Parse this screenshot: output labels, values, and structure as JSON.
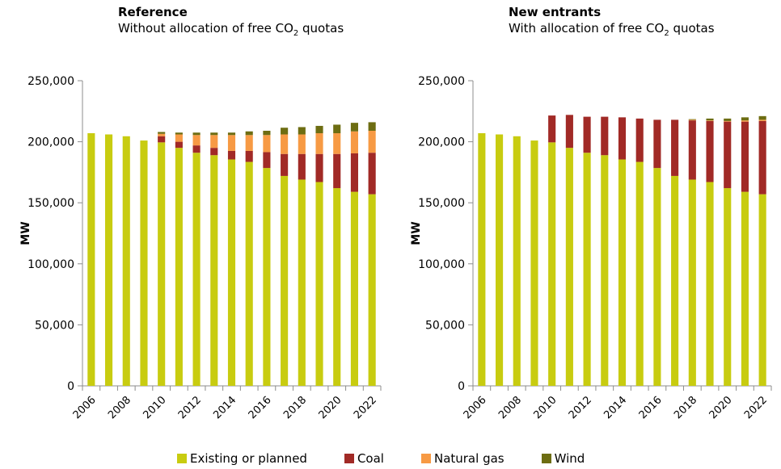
{
  "colors": {
    "Existing or planned": "#c8cc10",
    "Coal": "#a12a26",
    "Natural gas": "#f79a44",
    "Wind": "#6d6d12"
  },
  "legend": [
    "Existing or planned",
    "Coal",
    "Natural gas",
    "Wind"
  ],
  "chart_data": [
    {
      "type": "bar",
      "stacked": true,
      "title": "Reference",
      "subtitle": [
        "Without allocation of free CO",
        "2",
        " quotas"
      ],
      "ylabel": "MW",
      "ylim": [
        0,
        250000
      ],
      "yticks": [
        0,
        50000,
        100000,
        150000,
        200000,
        250000
      ],
      "ytick_labels": [
        "0",
        "50,000",
        "100,000",
        "150,000",
        "200,000",
        "250,000"
      ],
      "x_tick_labels": [
        "2006",
        "2008",
        "2010",
        "2012",
        "2014",
        "2016",
        "2018",
        "2020",
        "2022"
      ],
      "categories": [
        "2006",
        "2007",
        "2008",
        "2009",
        "2010",
        "2011",
        "2012",
        "2013",
        "2014",
        "2015",
        "2016",
        "2017",
        "2018",
        "2019",
        "2020",
        "2021",
        "2022"
      ],
      "series": [
        {
          "name": "Existing or planned",
          "values": [
            207000,
            206000,
            204500,
            201000,
            199500,
            195000,
            191000,
            189000,
            185500,
            183500,
            178500,
            172000,
            169000,
            167000,
            162000,
            159000,
            157000
          ]
        },
        {
          "name": "Coal",
          "values": [
            0,
            0,
            0,
            0,
            5000,
            5000,
            6000,
            6000,
            7000,
            9000,
            13000,
            18000,
            21000,
            23000,
            28000,
            31500,
            34000
          ]
        },
        {
          "name": "Natural gas",
          "values": [
            0,
            0,
            0,
            0,
            2000,
            6000,
            8500,
            10500,
            13000,
            13000,
            14000,
            16000,
            16000,
            17000,
            17000,
            18000,
            18000
          ]
        },
        {
          "name": "Wind",
          "values": [
            0,
            0,
            0,
            0,
            1500,
            1500,
            2000,
            2000,
            2000,
            3000,
            3500,
            5500,
            6000,
            6000,
            7000,
            7000,
            7000
          ]
        }
      ]
    },
    {
      "type": "bar",
      "stacked": true,
      "title": "New entrants",
      "subtitle": [
        "With allocation of free CO",
        "2",
        " quotas"
      ],
      "ylabel": "MW",
      "ylim": [
        0,
        250000
      ],
      "yticks": [
        0,
        50000,
        100000,
        150000,
        200000,
        250000
      ],
      "ytick_labels": [
        "0",
        "50,000",
        "100,000",
        "150,000",
        "200,000",
        "250,000"
      ],
      "x_tick_labels": [
        "2006",
        "2008",
        "2010",
        "2012",
        "2014",
        "2016",
        "2018",
        "2020",
        "2022"
      ],
      "categories": [
        "2006",
        "2007",
        "2008",
        "2009",
        "2010",
        "2011",
        "2012",
        "2013",
        "2014",
        "2015",
        "2016",
        "2017",
        "2018",
        "2019",
        "2020",
        "2021",
        "2022"
      ],
      "series": [
        {
          "name": "Existing or planned",
          "values": [
            207000,
            206000,
            204500,
            201000,
            199500,
            195000,
            191000,
            189000,
            185500,
            183500,
            178500,
            172000,
            169000,
            167000,
            162000,
            159000,
            157000
          ]
        },
        {
          "name": "Coal",
          "values": [
            0,
            0,
            0,
            0,
            22000,
            27000,
            29500,
            31500,
            34500,
            35500,
            39500,
            46000,
            48500,
            50000,
            54500,
            57500,
            60000
          ]
        },
        {
          "name": "Natural gas",
          "values": [
            0,
            0,
            0,
            0,
            0,
            0,
            0,
            0,
            0,
            0,
            0,
            0,
            500,
            500,
            500,
            1000,
            1000
          ]
        },
        {
          "name": "Wind",
          "values": [
            0,
            0,
            0,
            0,
            0,
            0,
            0,
            0,
            0,
            0,
            0,
            0,
            500,
            1500,
            2000,
            2500,
            3000
          ]
        }
      ]
    }
  ]
}
